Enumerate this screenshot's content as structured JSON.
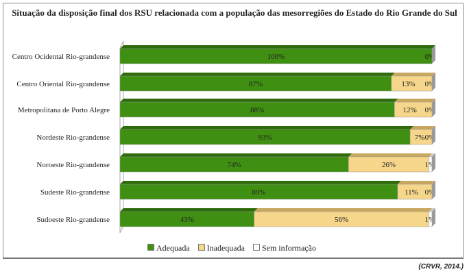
{
  "chart_data": {
    "type": "bar",
    "stacked": true,
    "orientation": "horizontal",
    "title": "Situação da disposição  final dos RSU relacionada com a população das mesorregiões do Estado do Rio Grande do Sul",
    "categories": [
      "Centro Ocidental Rio-grandense",
      "Centro Oriental Rio-grandense",
      "Metropolitana de Porto Alegre",
      "Nordeste Rio-grandense",
      "Noroeste Rio-grandense",
      "Sudeste Rio-grandense",
      "Sudoeste Rio-grandense"
    ],
    "series": [
      {
        "name": "Adequada",
        "color": "#3f8f12",
        "values": [
          100,
          87,
          88,
          93,
          74,
          89,
          43
        ]
      },
      {
        "name": "Inadequada",
        "color": "#f5d68a",
        "values": [
          0,
          13,
          12,
          7,
          26,
          11,
          56
        ]
      },
      {
        "name": "Sem informação",
        "color": "#ffffff",
        "values": [
          0,
          0,
          0,
          0,
          1,
          0,
          1
        ]
      }
    ],
    "unit": "%",
    "legend": "bottom",
    "xlim": [
      0,
      100
    ]
  },
  "source": "(CRVR, 2014.)"
}
